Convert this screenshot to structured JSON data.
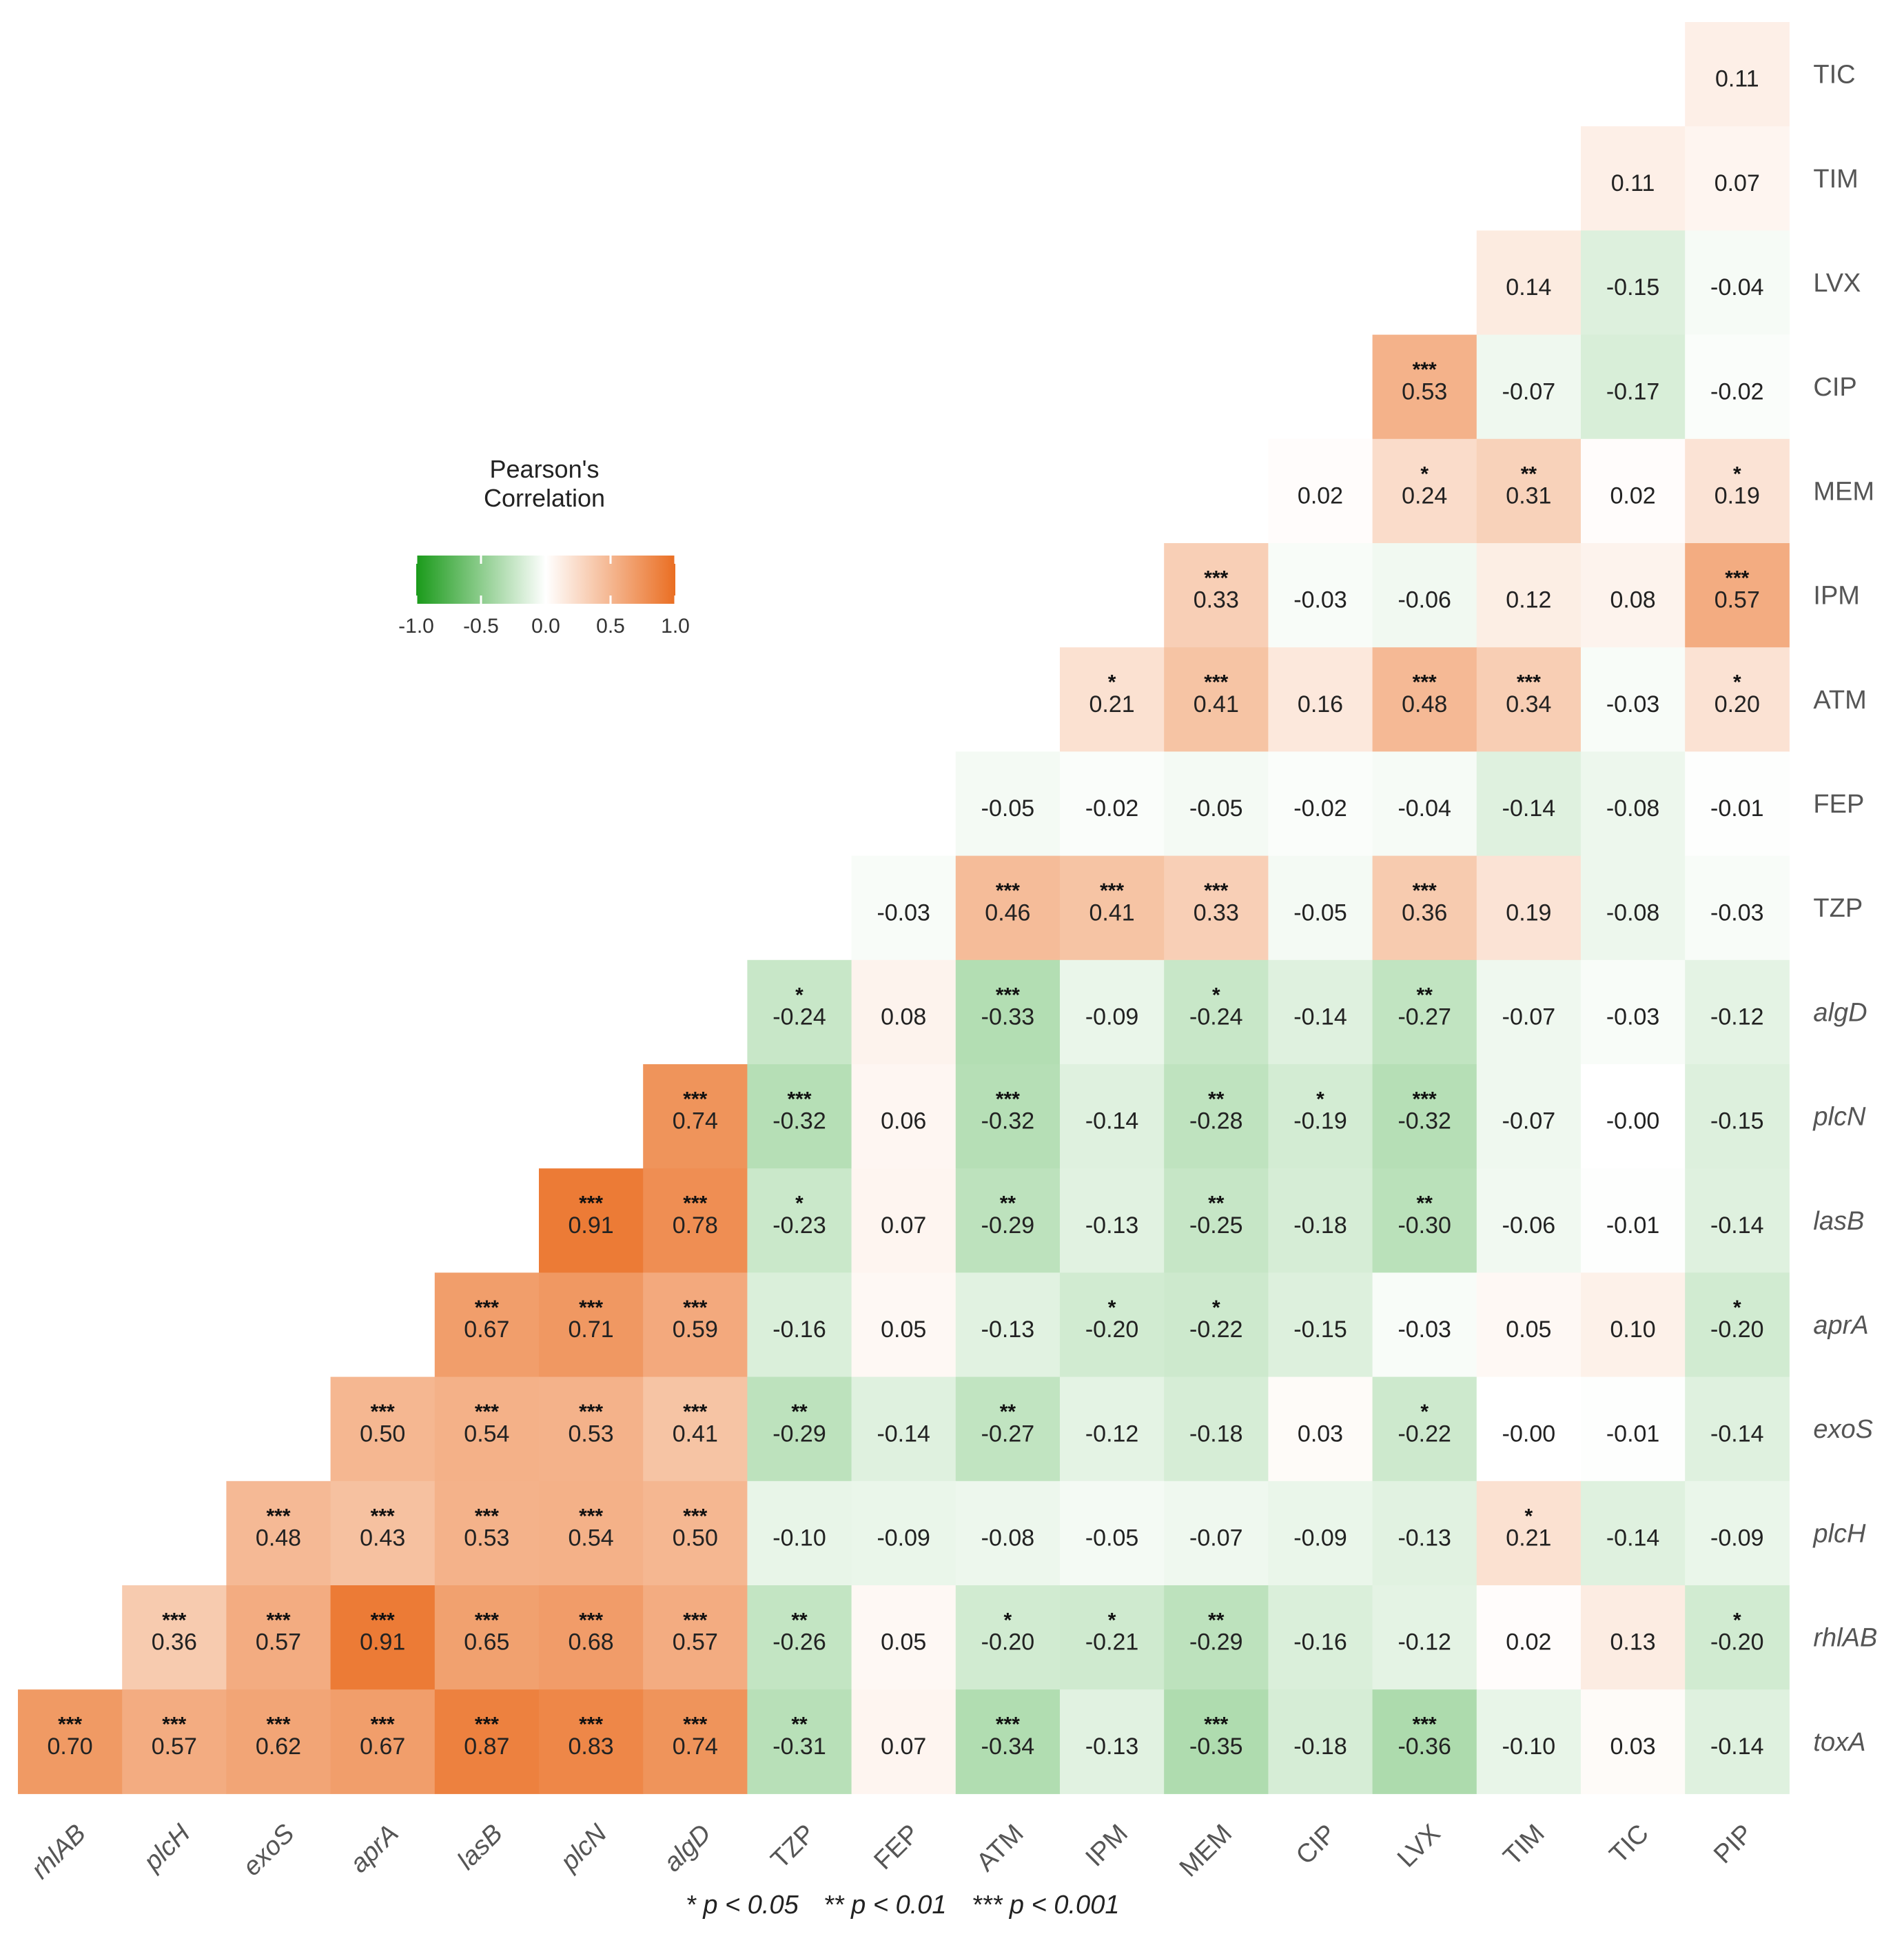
{
  "chart_data": {
    "type": "heatmap",
    "title": "",
    "xlabel": "",
    "ylabel": "",
    "columns": [
      "rhlAB",
      "plcH",
      "exoS",
      "aprA",
      "lasB",
      "plcN",
      "algD",
      "TZP",
      "FEP",
      "ATM",
      "IPM",
      "MEM",
      "CIP",
      "LVX",
      "TIM",
      "TIC",
      "PIP"
    ],
    "rows": [
      "TIC",
      "TIM",
      "LVX",
      "CIP",
      "MEM",
      "IPM",
      "ATM",
      "FEP",
      "TZP",
      "algD",
      "plcN",
      "lasB",
      "aprA",
      "exoS",
      "plcH",
      "rhlAB",
      "toxA"
    ],
    "italic_labels": [
      "rhlAB",
      "plcH",
      "exoS",
      "aprA",
      "lasB",
      "plcN",
      "algD",
      "toxA"
    ],
    "values": [
      [
        null,
        null,
        null,
        null,
        null,
        null,
        null,
        null,
        null,
        null,
        null,
        null,
        null,
        null,
        null,
        null,
        0.11
      ],
      [
        null,
        null,
        null,
        null,
        null,
        null,
        null,
        null,
        null,
        null,
        null,
        null,
        null,
        null,
        null,
        0.11,
        0.07
      ],
      [
        null,
        null,
        null,
        null,
        null,
        null,
        null,
        null,
        null,
        null,
        null,
        null,
        null,
        null,
        0.14,
        -0.15,
        -0.04
      ],
      [
        null,
        null,
        null,
        null,
        null,
        null,
        null,
        null,
        null,
        null,
        null,
        null,
        null,
        0.53,
        -0.07,
        -0.17,
        -0.02
      ],
      [
        null,
        null,
        null,
        null,
        null,
        null,
        null,
        null,
        null,
        null,
        null,
        null,
        0.02,
        0.24,
        0.31,
        0.02,
        0.19
      ],
      [
        null,
        null,
        null,
        null,
        null,
        null,
        null,
        null,
        null,
        null,
        null,
        0.33,
        -0.03,
        -0.06,
        0.12,
        0.08,
        0.57
      ],
      [
        null,
        null,
        null,
        null,
        null,
        null,
        null,
        null,
        null,
        null,
        0.21,
        0.41,
        0.16,
        0.48,
        0.34,
        -0.03,
        0.2
      ],
      [
        null,
        null,
        null,
        null,
        null,
        null,
        null,
        null,
        null,
        -0.05,
        -0.02,
        -0.05,
        -0.02,
        -0.04,
        -0.14,
        -0.08,
        -0.01
      ],
      [
        null,
        null,
        null,
        null,
        null,
        null,
        null,
        null,
        -0.03,
        0.46,
        0.41,
        0.33,
        -0.05,
        0.36,
        0.19,
        -0.08,
        -0.03
      ],
      [
        null,
        null,
        null,
        null,
        null,
        null,
        null,
        -0.24,
        0.08,
        -0.33,
        -0.09,
        -0.24,
        -0.14,
        -0.27,
        -0.07,
        -0.03,
        -0.12
      ],
      [
        null,
        null,
        null,
        null,
        null,
        null,
        0.74,
        -0.32,
        0.06,
        -0.32,
        -0.14,
        -0.28,
        -0.19,
        -0.32,
        -0.07,
        -0.0,
        -0.15
      ],
      [
        null,
        null,
        null,
        null,
        null,
        0.91,
        0.78,
        -0.23,
        0.07,
        -0.29,
        -0.13,
        -0.25,
        -0.18,
        -0.3,
        -0.06,
        -0.01,
        -0.14
      ],
      [
        null,
        null,
        null,
        null,
        0.67,
        0.71,
        0.59,
        -0.16,
        0.05,
        -0.13,
        -0.2,
        -0.22,
        -0.15,
        -0.03,
        0.05,
        0.1,
        -0.2
      ],
      [
        null,
        null,
        null,
        0.5,
        0.54,
        0.53,
        0.41,
        -0.29,
        -0.14,
        -0.27,
        -0.12,
        -0.18,
        0.03,
        -0.22,
        -0.0,
        -0.01,
        -0.14
      ],
      [
        null,
        null,
        0.48,
        0.43,
        0.53,
        0.54,
        0.5,
        -0.1,
        -0.09,
        -0.08,
        -0.05,
        -0.07,
        -0.09,
        -0.13,
        0.21,
        -0.14,
        -0.09
      ],
      [
        null,
        0.36,
        0.57,
        0.91,
        0.65,
        0.68,
        0.57,
        -0.26,
        0.05,
        -0.2,
        -0.21,
        -0.29,
        -0.16,
        -0.12,
        0.02,
        0.13,
        -0.2
      ],
      [
        0.7,
        0.57,
        0.62,
        0.67,
        0.87,
        0.83,
        0.74,
        -0.31,
        0.07,
        -0.34,
        -0.13,
        -0.35,
        -0.18,
        -0.36,
        -0.1,
        0.03,
        -0.14
      ]
    ],
    "labels": [
      [
        null,
        null,
        null,
        null,
        null,
        null,
        null,
        null,
        null,
        null,
        null,
        null,
        null,
        null,
        null,
        null,
        "0.11"
      ],
      [
        null,
        null,
        null,
        null,
        null,
        null,
        null,
        null,
        null,
        null,
        null,
        null,
        null,
        null,
        null,
        "0.11",
        "0.07"
      ],
      [
        null,
        null,
        null,
        null,
        null,
        null,
        null,
        null,
        null,
        null,
        null,
        null,
        null,
        null,
        "0.14",
        "-0.15",
        "-0.04"
      ],
      [
        null,
        null,
        null,
        null,
        null,
        null,
        null,
        null,
        null,
        null,
        null,
        null,
        null,
        "0.53",
        "-0.07",
        "-0.17",
        "-0.02"
      ],
      [
        null,
        null,
        null,
        null,
        null,
        null,
        null,
        null,
        null,
        null,
        null,
        null,
        "0.02",
        "0.24",
        "0.31",
        "0.02",
        "0.19"
      ],
      [
        null,
        null,
        null,
        null,
        null,
        null,
        null,
        null,
        null,
        null,
        null,
        "0.33",
        "-0.03",
        "-0.06",
        "0.12",
        "0.08",
        "0.57"
      ],
      [
        null,
        null,
        null,
        null,
        null,
        null,
        null,
        null,
        null,
        null,
        "0.21",
        "0.41",
        "0.16",
        "0.48",
        "0.34",
        "-0.03",
        "0.20"
      ],
      [
        null,
        null,
        null,
        null,
        null,
        null,
        null,
        null,
        null,
        "-0.05",
        "-0.02",
        "-0.05",
        "-0.02",
        "-0.04",
        "-0.14",
        "-0.08",
        "-0.01"
      ],
      [
        null,
        null,
        null,
        null,
        null,
        null,
        null,
        null,
        "-0.03",
        "0.46",
        "0.41",
        "0.33",
        "-0.05",
        "0.36",
        "0.19",
        "-0.08",
        "-0.03"
      ],
      [
        null,
        null,
        null,
        null,
        null,
        null,
        null,
        "-0.24",
        "0.08",
        "-0.33",
        "-0.09",
        "-0.24",
        "-0.14",
        "-0.27",
        "-0.07",
        "-0.03",
        "-0.12"
      ],
      [
        null,
        null,
        null,
        null,
        null,
        null,
        "0.74",
        "-0.32",
        "0.06",
        "-0.32",
        "-0.14",
        "-0.28",
        "-0.19",
        "-0.32",
        "-0.07",
        "-0.00",
        "-0.15"
      ],
      [
        null,
        null,
        null,
        null,
        null,
        "0.91",
        "0.78",
        "-0.23",
        "0.07",
        "-0.29",
        "-0.13",
        "-0.25",
        "-0.18",
        "-0.30",
        "-0.06",
        "-0.01",
        "-0.14"
      ],
      [
        null,
        null,
        null,
        null,
        "0.67",
        "0.71",
        "0.59",
        "-0.16",
        "0.05",
        "-0.13",
        "-0.20",
        "-0.22",
        "-0.15",
        "-0.03",
        "0.05",
        "0.10",
        "-0.20"
      ],
      [
        null,
        null,
        null,
        "0.50",
        "0.54",
        "0.53",
        "0.41",
        "-0.29",
        "-0.14",
        "-0.27",
        "-0.12",
        "-0.18",
        "0.03",
        "-0.22",
        "-0.00",
        "-0.01",
        "-0.14"
      ],
      [
        null,
        null,
        "0.48",
        "0.43",
        "0.53",
        "0.54",
        "0.50",
        "-0.10",
        "-0.09",
        "-0.08",
        "-0.05",
        "-0.07",
        "-0.09",
        "-0.13",
        "0.21",
        "-0.14",
        "-0.09"
      ],
      [
        null,
        "0.36",
        "0.57",
        "0.91",
        "0.65",
        "0.68",
        "0.57",
        "-0.26",
        "0.05",
        "-0.20",
        "-0.21",
        "-0.29",
        "-0.16",
        "-0.12",
        "0.02",
        "0.13",
        "-0.20"
      ],
      [
        "0.70",
        "0.57",
        "0.62",
        "0.67",
        "0.87",
        "0.83",
        "0.74",
        "-0.31",
        "0.07",
        "-0.34",
        "-0.13",
        "-0.35",
        "-0.18",
        "-0.36",
        "-0.10",
        "0.03",
        "-0.14"
      ]
    ],
    "significance": [
      [
        null,
        null,
        null,
        null,
        null,
        null,
        null,
        null,
        null,
        null,
        null,
        null,
        null,
        null,
        null,
        null,
        ""
      ],
      [
        null,
        null,
        null,
        null,
        null,
        null,
        null,
        null,
        null,
        null,
        null,
        null,
        null,
        null,
        null,
        "",
        ""
      ],
      [
        null,
        null,
        null,
        null,
        null,
        null,
        null,
        null,
        null,
        null,
        null,
        null,
        null,
        null,
        "",
        "",
        ""
      ],
      [
        null,
        null,
        null,
        null,
        null,
        null,
        null,
        null,
        null,
        null,
        null,
        null,
        null,
        "***",
        "",
        "",
        ""
      ],
      [
        null,
        null,
        null,
        null,
        null,
        null,
        null,
        null,
        null,
        null,
        null,
        null,
        "",
        "*",
        "**",
        "",
        "*"
      ],
      [
        null,
        null,
        null,
        null,
        null,
        null,
        null,
        null,
        null,
        null,
        null,
        "***",
        "",
        "",
        "",
        "",
        "***"
      ],
      [
        null,
        null,
        null,
        null,
        null,
        null,
        null,
        null,
        null,
        null,
        "*",
        "***",
        "",
        "***",
        "***",
        "",
        "*"
      ],
      [
        null,
        null,
        null,
        null,
        null,
        null,
        null,
        null,
        null,
        "",
        "",
        "",
        "",
        "",
        "",
        "",
        ""
      ],
      [
        null,
        null,
        null,
        null,
        null,
        null,
        null,
        null,
        "",
        "***",
        "***",
        "***",
        "",
        "***",
        "",
        "",
        ""
      ],
      [
        null,
        null,
        null,
        null,
        null,
        null,
        null,
        "*",
        "",
        "***",
        "",
        "*",
        "",
        "**",
        "",
        "",
        ""
      ],
      [
        null,
        null,
        null,
        null,
        null,
        null,
        "***",
        "***",
        "",
        "***",
        "",
        "**",
        "*",
        "***",
        "",
        "",
        ""
      ],
      [
        null,
        null,
        null,
        null,
        null,
        "***",
        "***",
        "*",
        "",
        "**",
        "",
        "**",
        "",
        "**",
        "",
        "",
        ""
      ],
      [
        null,
        null,
        null,
        null,
        "***",
        "***",
        "***",
        "",
        "",
        "",
        "*",
        "*",
        "",
        "",
        "",
        "",
        "*"
      ],
      [
        null,
        null,
        null,
        "***",
        "***",
        "***",
        "***",
        "**",
        "",
        "**",
        "",
        "",
        "",
        "*",
        "",
        "",
        ""
      ],
      [
        null,
        null,
        "***",
        "***",
        "***",
        "***",
        "***",
        "",
        "",
        "",
        "",
        "",
        "",
        "",
        "*",
        "",
        ""
      ],
      [
        null,
        "***",
        "***",
        "***",
        "***",
        "***",
        "***",
        "**",
        "",
        "*",
        "*",
        "**",
        "",
        "",
        "",
        "",
        "*"
      ],
      [
        "***",
        "***",
        "***",
        "***",
        "***",
        "***",
        "***",
        "**",
        "",
        "***",
        "",
        "***",
        "",
        "***",
        "",
        "",
        ""
      ]
    ],
    "legend": {
      "title_line1": "Pearson's",
      "title_line2": "Correlation",
      "range": [
        -1.0,
        1.0
      ],
      "ticks": [
        "-1.0",
        "-0.5",
        "0.0",
        "0.5",
        "1.0"
      ],
      "placement": "upper-left"
    },
    "colors": {
      "negative": "#1a9a1a",
      "zero": "#ffffff",
      "positive": "#ea6e22"
    },
    "footnote": {
      "p1": "* p < 0.05",
      "p2": "** p < 0.01",
      "p3": "*** p < 0.001"
    }
  }
}
